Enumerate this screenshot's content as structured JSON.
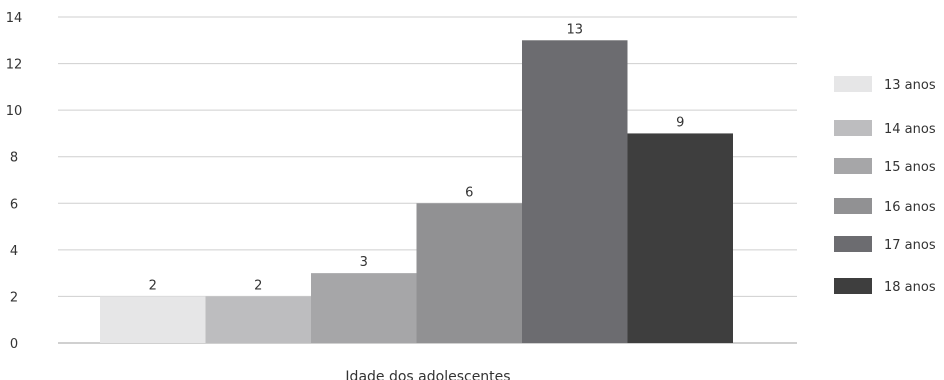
{
  "chart_data": {
    "type": "bar",
    "xlabel": "Idade dos adolescentes",
    "ylabel": "",
    "ylim": [
      0,
      14
    ],
    "yticks": [
      0,
      2,
      4,
      6,
      8,
      10,
      12,
      14
    ],
    "grid": true,
    "legend_position": "right",
    "series": [
      {
        "name": "13 anos",
        "value": 2,
        "color": "#e6e6e7"
      },
      {
        "name": "14 anos",
        "value": 2,
        "color": "#bdbdbf"
      },
      {
        "name": "15 anos",
        "value": 3,
        "color": "#a6a6a8"
      },
      {
        "name": "16 anos",
        "value": 6,
        "color": "#919193"
      },
      {
        "name": "17 anos",
        "value": 13,
        "color": "#6c6c70"
      },
      {
        "name": "18 anos",
        "value": 9,
        "color": "#3e3e3e"
      }
    ]
  }
}
